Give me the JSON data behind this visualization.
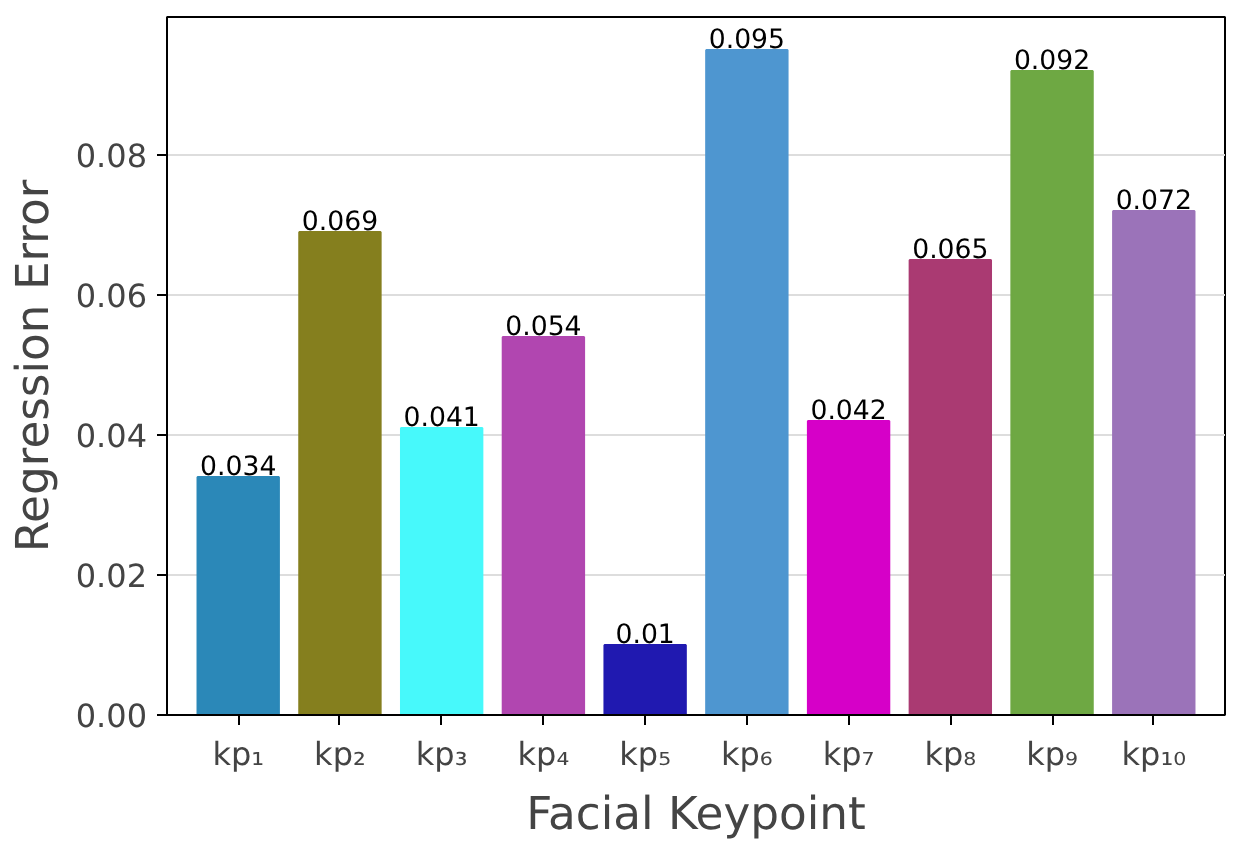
{
  "chart_data": {
    "type": "bar",
    "xlabel": "Facial Keypoint",
    "ylabel": "Regression Error",
    "categories": [
      "kp₁",
      "kp₂",
      "kp₃",
      "kp₄",
      "kp₅",
      "kp₆",
      "kp₇",
      "kp₈",
      "kp₉",
      "kp₁₀"
    ],
    "values": [
      0.034,
      0.069,
      0.041,
      0.054,
      0.01,
      0.095,
      0.042,
      0.065,
      0.092,
      0.072
    ],
    "colors": [
      "#2b88b8",
      "#857f1e",
      "#47f9fb",
      "#b146b0",
      "#2019b0",
      "#4e96d0",
      "#d600c8",
      "#aa3a72",
      "#6ea843",
      "#9b73b9"
    ],
    "ylim": [
      0,
      0.0997
    ],
    "yticks": [
      {
        "value": 0,
        "label": "0.00"
      },
      {
        "value": 0.02,
        "label": "0.02"
      },
      {
        "value": 0.04,
        "label": "0.04"
      },
      {
        "value": 0.06,
        "label": "0.06"
      },
      {
        "value": 0.08,
        "label": "0.08"
      }
    ],
    "grid": "y",
    "data_labels": true
  }
}
